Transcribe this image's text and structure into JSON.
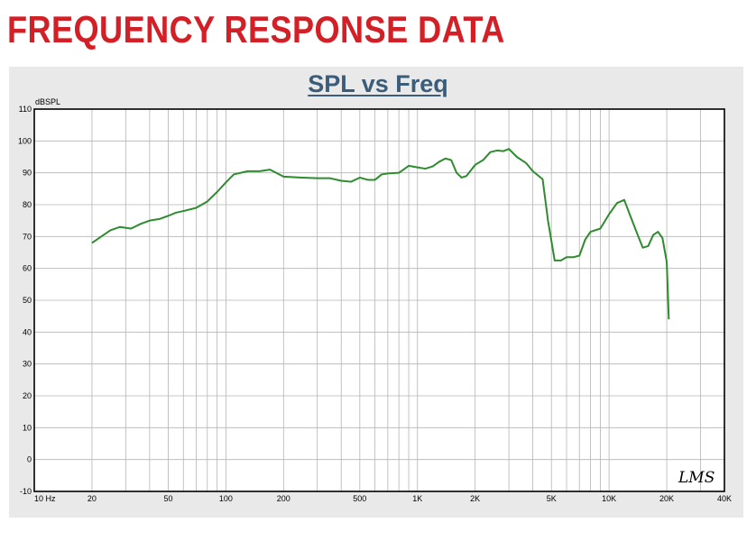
{
  "page": {
    "heading": "FREQUENCY RESPONSE DATA",
    "heading_color": "#d31f26",
    "title_color": "#3b5d7a"
  },
  "chart_data": {
    "type": "line",
    "title": "SPL vs Freq",
    "ylabel": "dBSPL",
    "xlabel": "",
    "x_scale": "log",
    "xlim": [
      10,
      40000
    ],
    "ylim": [
      -10,
      110
    ],
    "x_ticks": [
      {
        "value": 10,
        "label": "10  Hz"
      },
      {
        "value": 20,
        "label": "20"
      },
      {
        "value": 50,
        "label": "50"
      },
      {
        "value": 100,
        "label": "100"
      },
      {
        "value": 200,
        "label": "200"
      },
      {
        "value": 500,
        "label": "500"
      },
      {
        "value": 1000,
        "label": "1K"
      },
      {
        "value": 2000,
        "label": "2K"
      },
      {
        "value": 5000,
        "label": "5K"
      },
      {
        "value": 10000,
        "label": "10K"
      },
      {
        "value": 20000,
        "label": "20K"
      },
      {
        "value": 40000,
        "label": "40K"
      }
    ],
    "y_ticks": [
      110,
      100,
      90,
      80,
      70,
      60,
      50,
      40,
      30,
      20,
      10,
      0,
      -10
    ],
    "grid": true,
    "series_color": "#2e8b2e",
    "signature": "LMS",
    "series": [
      {
        "x": [
          20,
          23,
          25,
          28,
          32,
          36,
          40,
          45,
          50,
          55,
          60,
          70,
          80,
          90,
          100,
          110,
          130,
          150,
          170,
          200,
          250,
          300,
          350,
          400,
          450,
          500,
          550,
          600,
          650,
          700,
          800,
          900,
          1000,
          1100,
          1200,
          1300,
          1400,
          1500,
          1600,
          1700,
          1800,
          2000,
          2200,
          2400,
          2600,
          2800,
          3000,
          3300,
          3700,
          4000,
          4500,
          4800,
          5200,
          5600,
          6000,
          6500,
          7000,
          7500,
          8000,
          9000,
          10000,
          11000,
          11500,
          12000,
          13000,
          14000,
          15000,
          16000,
          17000,
          18000,
          19000,
          20000,
          20500
        ],
        "y": [
          68,
          70.5,
          72,
          73,
          72.5,
          74,
          75,
          75.5,
          76.5,
          77.5,
          78,
          79,
          81,
          84,
          87,
          89.5,
          90.5,
          90.5,
          91,
          88.8,
          88.5,
          88.3,
          88.3,
          87.5,
          87.2,
          88.5,
          87.8,
          87.8,
          89.5,
          89.8,
          90,
          92.2,
          91.7,
          91.3,
          92,
          93.5,
          94.5,
          94,
          90,
          88.5,
          89,
          92.5,
          94,
          96.5,
          97,
          96.8,
          97.5,
          95,
          93,
          90.5,
          88,
          75,
          62.5,
          62.5,
          63.5,
          63.5,
          64,
          69,
          71.5,
          72.5,
          77,
          80.5,
          81,
          81.5,
          76,
          71,
          66.5,
          67,
          70.5,
          71.5,
          69.5,
          62,
          44
        ]
      }
    ]
  }
}
